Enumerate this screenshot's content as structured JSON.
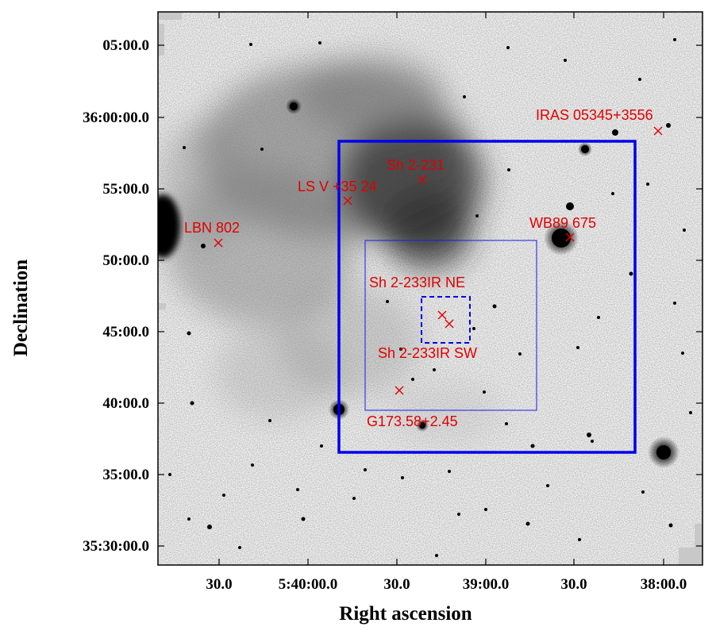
{
  "colors": {
    "markers": "#e00000",
    "boxes": "#0000ee",
    "frame": "#000000"
  },
  "axes": {
    "x_title": "Right ascension",
    "y_title": "Declination",
    "x_ticks": [
      "30.0",
      "5:40:00.0",
      "30.0",
      "39:00.0",
      "30.0",
      "38:00.0"
    ],
    "y_ticks": [
      "05:00.0",
      "36:00:00.0",
      "55:00.0",
      "50:00.0",
      "45:00.0",
      "40:00.0",
      "35:00.0",
      "35:30:00.0"
    ]
  },
  "sources": [
    {
      "id": "iras",
      "label": "IRAS 05345+3556"
    },
    {
      "id": "sh2231",
      "label": "Sh 2-231"
    },
    {
      "id": "lsv",
      "label": "LS V +35 24"
    },
    {
      "id": "lbn",
      "label": "LBN 802"
    },
    {
      "id": "wb89",
      "label": "WB89 675"
    },
    {
      "id": "ne",
      "label": "Sh 2-233IR NE"
    },
    {
      "id": "sw",
      "label": "Sh 2-233IR SW"
    },
    {
      "id": "g173",
      "label": "G173.58+2.45"
    }
  ]
}
